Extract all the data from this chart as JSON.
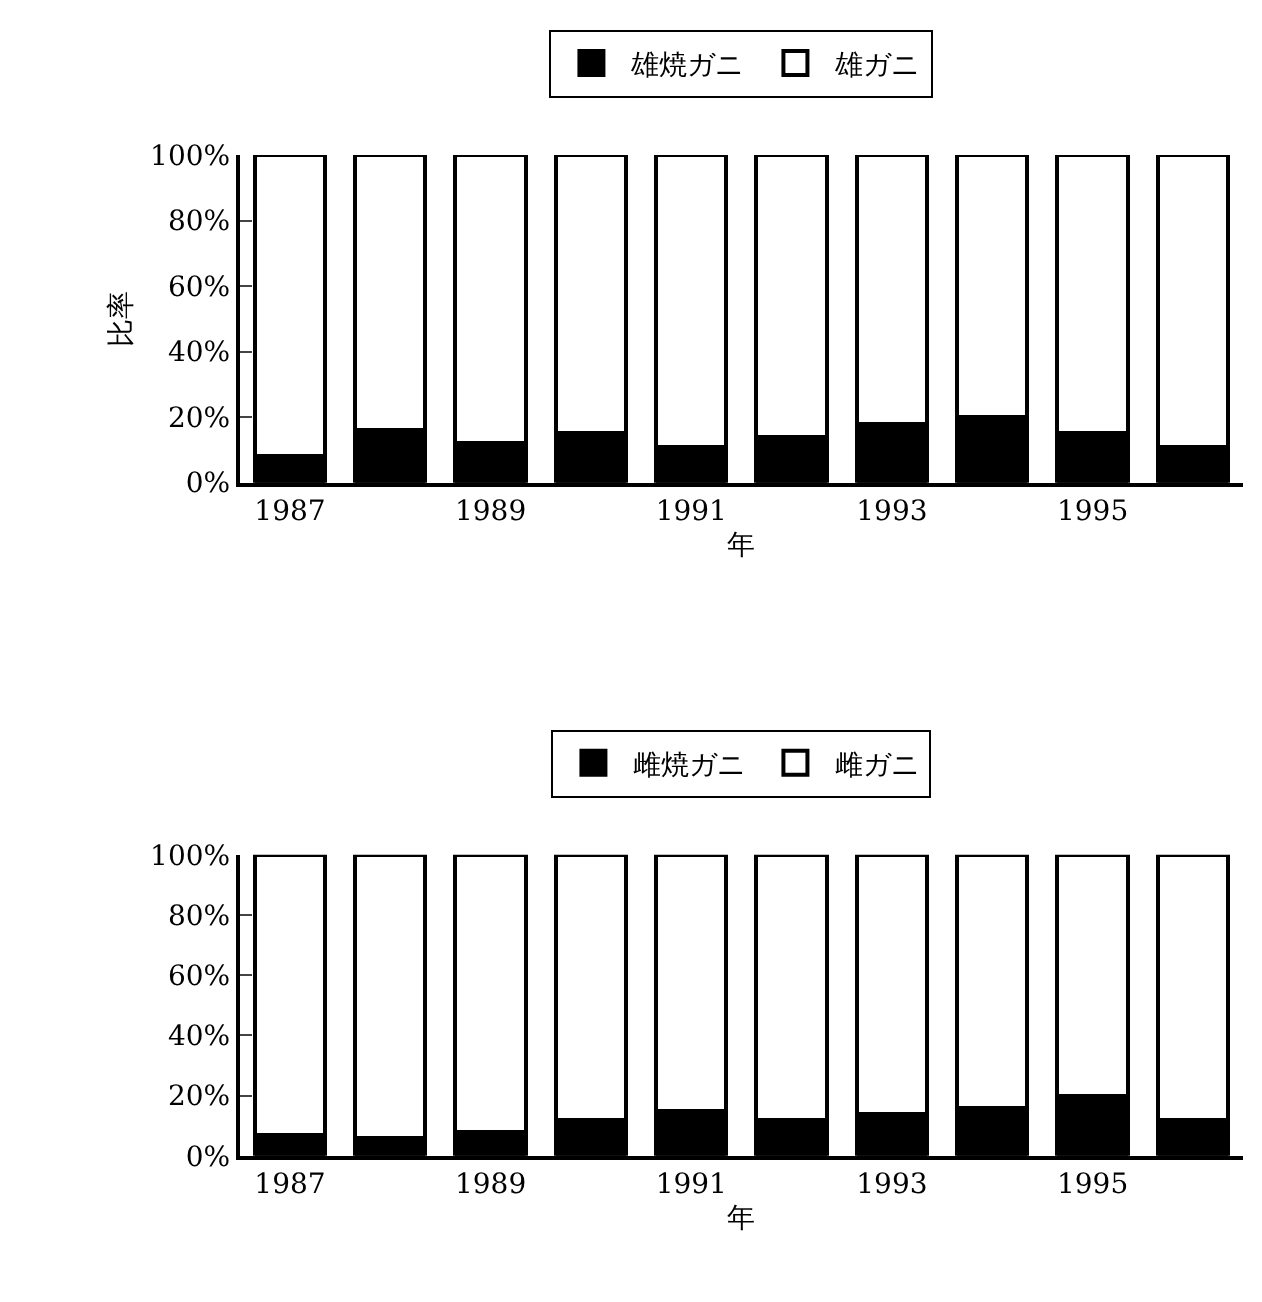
{
  "chart_data": [
    {
      "type": "bar",
      "stacked": true,
      "categories": [
        "1987",
        null,
        "1989",
        null,
        "1991",
        null,
        "1993",
        null,
        "1995",
        null
      ],
      "series": [
        {
          "name": "雄焼ガニ",
          "color": "#000000",
          "values": [
            8,
            16,
            12,
            15,
            11,
            14,
            18,
            20,
            15,
            11
          ]
        },
        {
          "name": "雄ガニ",
          "color": "#ffffff",
          "values": [
            92,
            84,
            88,
            85,
            89,
            86,
            82,
            80,
            85,
            89
          ]
        }
      ],
      "ylim": [
        0,
        100
      ],
      "yticks": [
        {
          "value": 0,
          "label": "0%"
        },
        {
          "value": 20,
          "label": "20%"
        },
        {
          "value": 40,
          "label": "40%"
        },
        {
          "value": 60,
          "label": "60%"
        },
        {
          "value": 80,
          "label": "80%"
        },
        {
          "value": 100,
          "label": "100%"
        }
      ],
      "xlabel": "年",
      "ylabel": "比率",
      "legend": "top"
    },
    {
      "type": "bar",
      "stacked": true,
      "categories": [
        "1987",
        null,
        "1989",
        null,
        "1991",
        null,
        "1993",
        null,
        "1995",
        null
      ],
      "series": [
        {
          "name": "雌焼ガニ",
          "color": "#000000",
          "values": [
            7,
            6,
            8,
            12,
            15,
            12,
            14,
            16,
            20,
            12
          ]
        },
        {
          "name": "雌ガニ",
          "color": "#ffffff",
          "values": [
            93,
            94,
            92,
            88,
            85,
            88,
            86,
            84,
            80,
            88
          ]
        }
      ],
      "ylim": [
        0,
        100
      ],
      "yticks": [
        {
          "value": 0,
          "label": "0%"
        },
        {
          "value": 20,
          "label": "20%"
        },
        {
          "value": 40,
          "label": "40%"
        },
        {
          "value": 60,
          "label": "60%"
        },
        {
          "value": 80,
          "label": "80%"
        },
        {
          "value": 100,
          "label": "100%"
        }
      ],
      "xlabel": "年",
      "legend": "top"
    }
  ]
}
